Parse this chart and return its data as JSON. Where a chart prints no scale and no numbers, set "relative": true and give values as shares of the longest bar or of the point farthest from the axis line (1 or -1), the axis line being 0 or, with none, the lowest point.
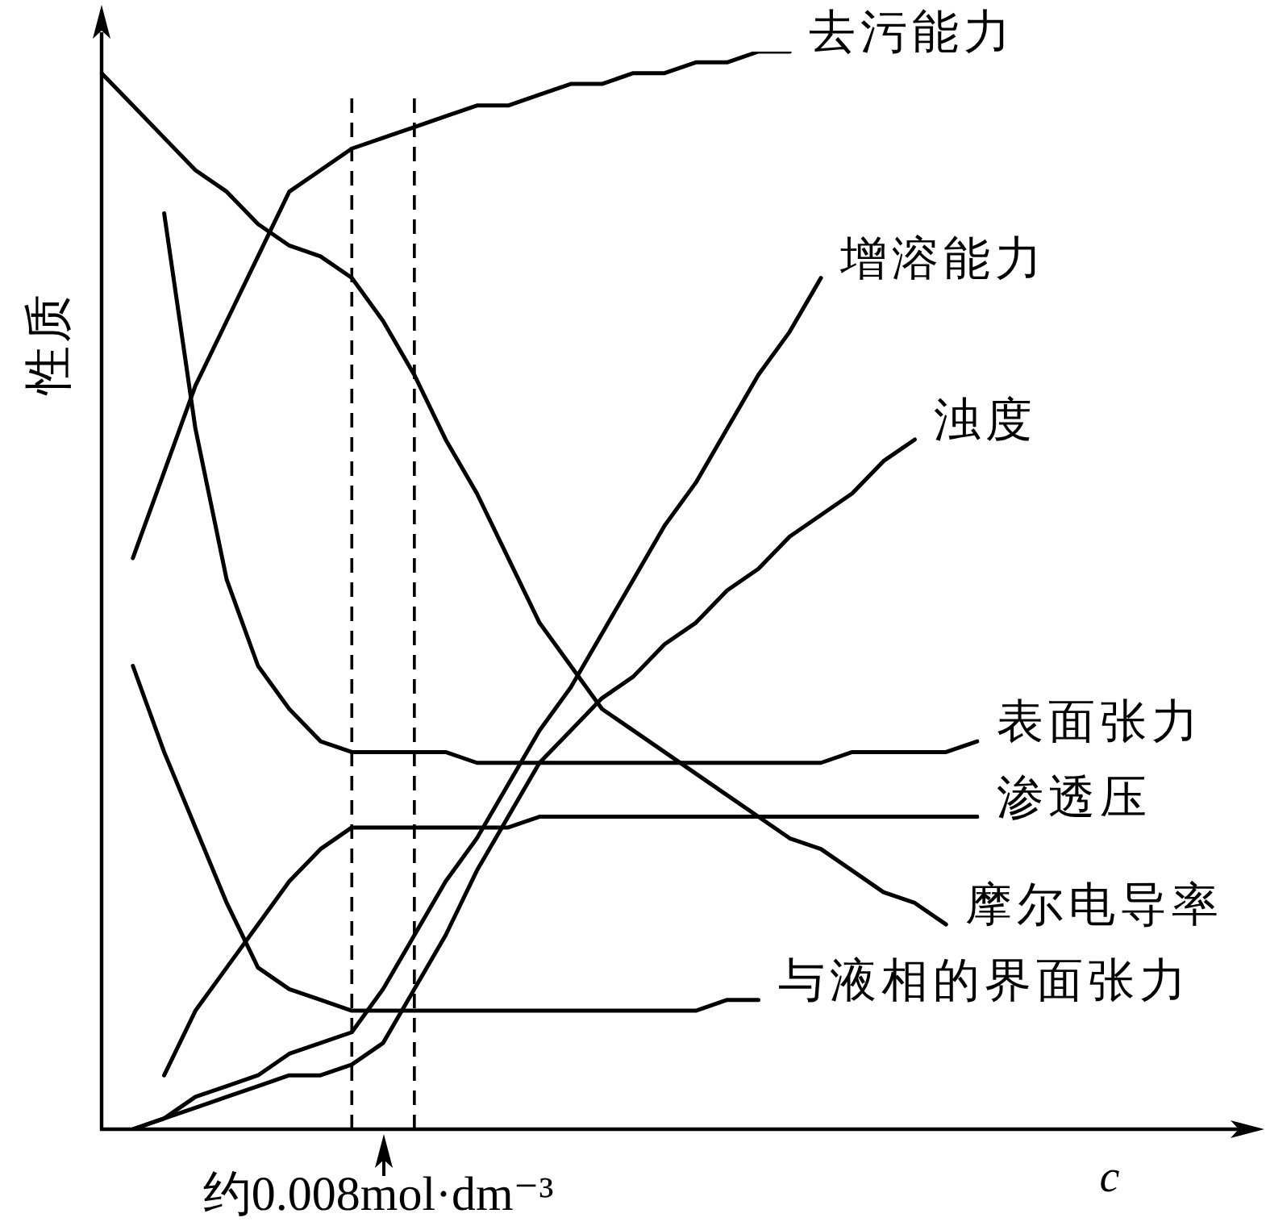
{
  "chart_data": {
    "type": "line",
    "xlabel": "c",
    "ylabel": "性质",
    "relative": true,
    "line_style": "solid",
    "marker": "none",
    "categories": [
      null,
      null,
      null,
      null,
      null,
      null,
      null,
      null,
      null,
      null,
      null,
      null,
      null,
      null,
      null,
      null,
      null,
      null,
      null,
      null,
      null,
      null,
      null,
      null,
      null,
      null,
      null,
      null,
      null
    ],
    "annotations": [
      "约0.008mol·dm⁻³"
    ],
    "series": [
      {
        "name": "去污能力",
        "color": "#000000",
        "values": [
          null,
          0.53,
          0.61,
          0.69,
          0.75,
          0.81,
          0.87,
          0.89,
          0.91,
          0.92,
          0.93,
          0.94,
          0.95,
          0.95,
          0.96,
          0.97,
          0.97,
          0.98,
          0.98,
          0.99,
          0.99,
          1,
          1,
          null,
          null,
          null,
          null,
          null,
          null
        ]
      },
      {
        "name": "增溶能力",
        "color": "#000000",
        "values": [
          null,
          0,
          0.01,
          0.03,
          0.04,
          0.05,
          0.07,
          0.08,
          0.09,
          0.13,
          0.18,
          0.23,
          0.27,
          0.32,
          0.37,
          0.41,
          0.46,
          0.51,
          0.56,
          0.6,
          0.65,
          0.7,
          0.74,
          0.79,
          null,
          null,
          null,
          null,
          null
        ]
      },
      {
        "name": "浊度",
        "color": "#000000",
        "values": [
          null,
          0,
          0.01,
          0.02,
          0.03,
          0.04,
          0.05,
          0.05,
          0.06,
          0.08,
          0.13,
          0.18,
          0.24,
          0.29,
          0.34,
          0.37,
          0.4,
          0.42,
          0.45,
          0.47,
          0.5,
          0.52,
          0.55,
          0.57,
          0.59,
          0.62,
          0.64,
          null,
          null
        ]
      },
      {
        "name": "表面张力",
        "color": "#000000",
        "values": [
          null,
          null,
          0.85,
          0.65,
          0.51,
          0.43,
          0.39,
          0.36,
          0.35,
          0.35,
          0.35,
          0.35,
          0.34,
          0.34,
          0.34,
          0.34,
          0.34,
          0.34,
          0.34,
          0.34,
          0.34,
          0.34,
          0.34,
          0.34,
          0.35,
          0.35,
          0.35,
          0.35,
          0.36
        ]
      },
      {
        "name": "渗透压",
        "color": "#000000",
        "values": [
          null,
          null,
          0.05,
          0.11,
          0.15,
          0.19,
          0.23,
          0.26,
          0.28,
          0.28,
          0.28,
          0.28,
          0.28,
          0.28,
          0.29,
          0.29,
          0.29,
          0.29,
          0.29,
          0.29,
          0.29,
          0.29,
          0.29,
          0.29,
          0.29,
          0.29,
          0.29,
          0.29,
          0.29
        ]
      },
      {
        "name": "摩尔电导率",
        "color": "#000000",
        "values": [
          0.98,
          0.95,
          0.92,
          0.89,
          0.87,
          0.84,
          0.82,
          0.81,
          0.79,
          0.75,
          0.7,
          0.64,
          0.59,
          0.53,
          0.47,
          0.43,
          0.39,
          0.37,
          0.35,
          0.33,
          0.31,
          0.29,
          0.27,
          0.26,
          0.24,
          0.22,
          0.21,
          0.19,
          null
        ]
      },
      {
        "name": "与液相的界面张力",
        "color": "#000000",
        "values": [
          null,
          0.43,
          0.35,
          0.28,
          0.21,
          0.15,
          0.13,
          0.12,
          0.11,
          0.11,
          0.11,
          0.11,
          0.11,
          0.11,
          0.11,
          0.11,
          0.11,
          0.11,
          0.11,
          0.11,
          0.12,
          0.12,
          null,
          null,
          null,
          null,
          null,
          null,
          null
        ]
      }
    ]
  }
}
